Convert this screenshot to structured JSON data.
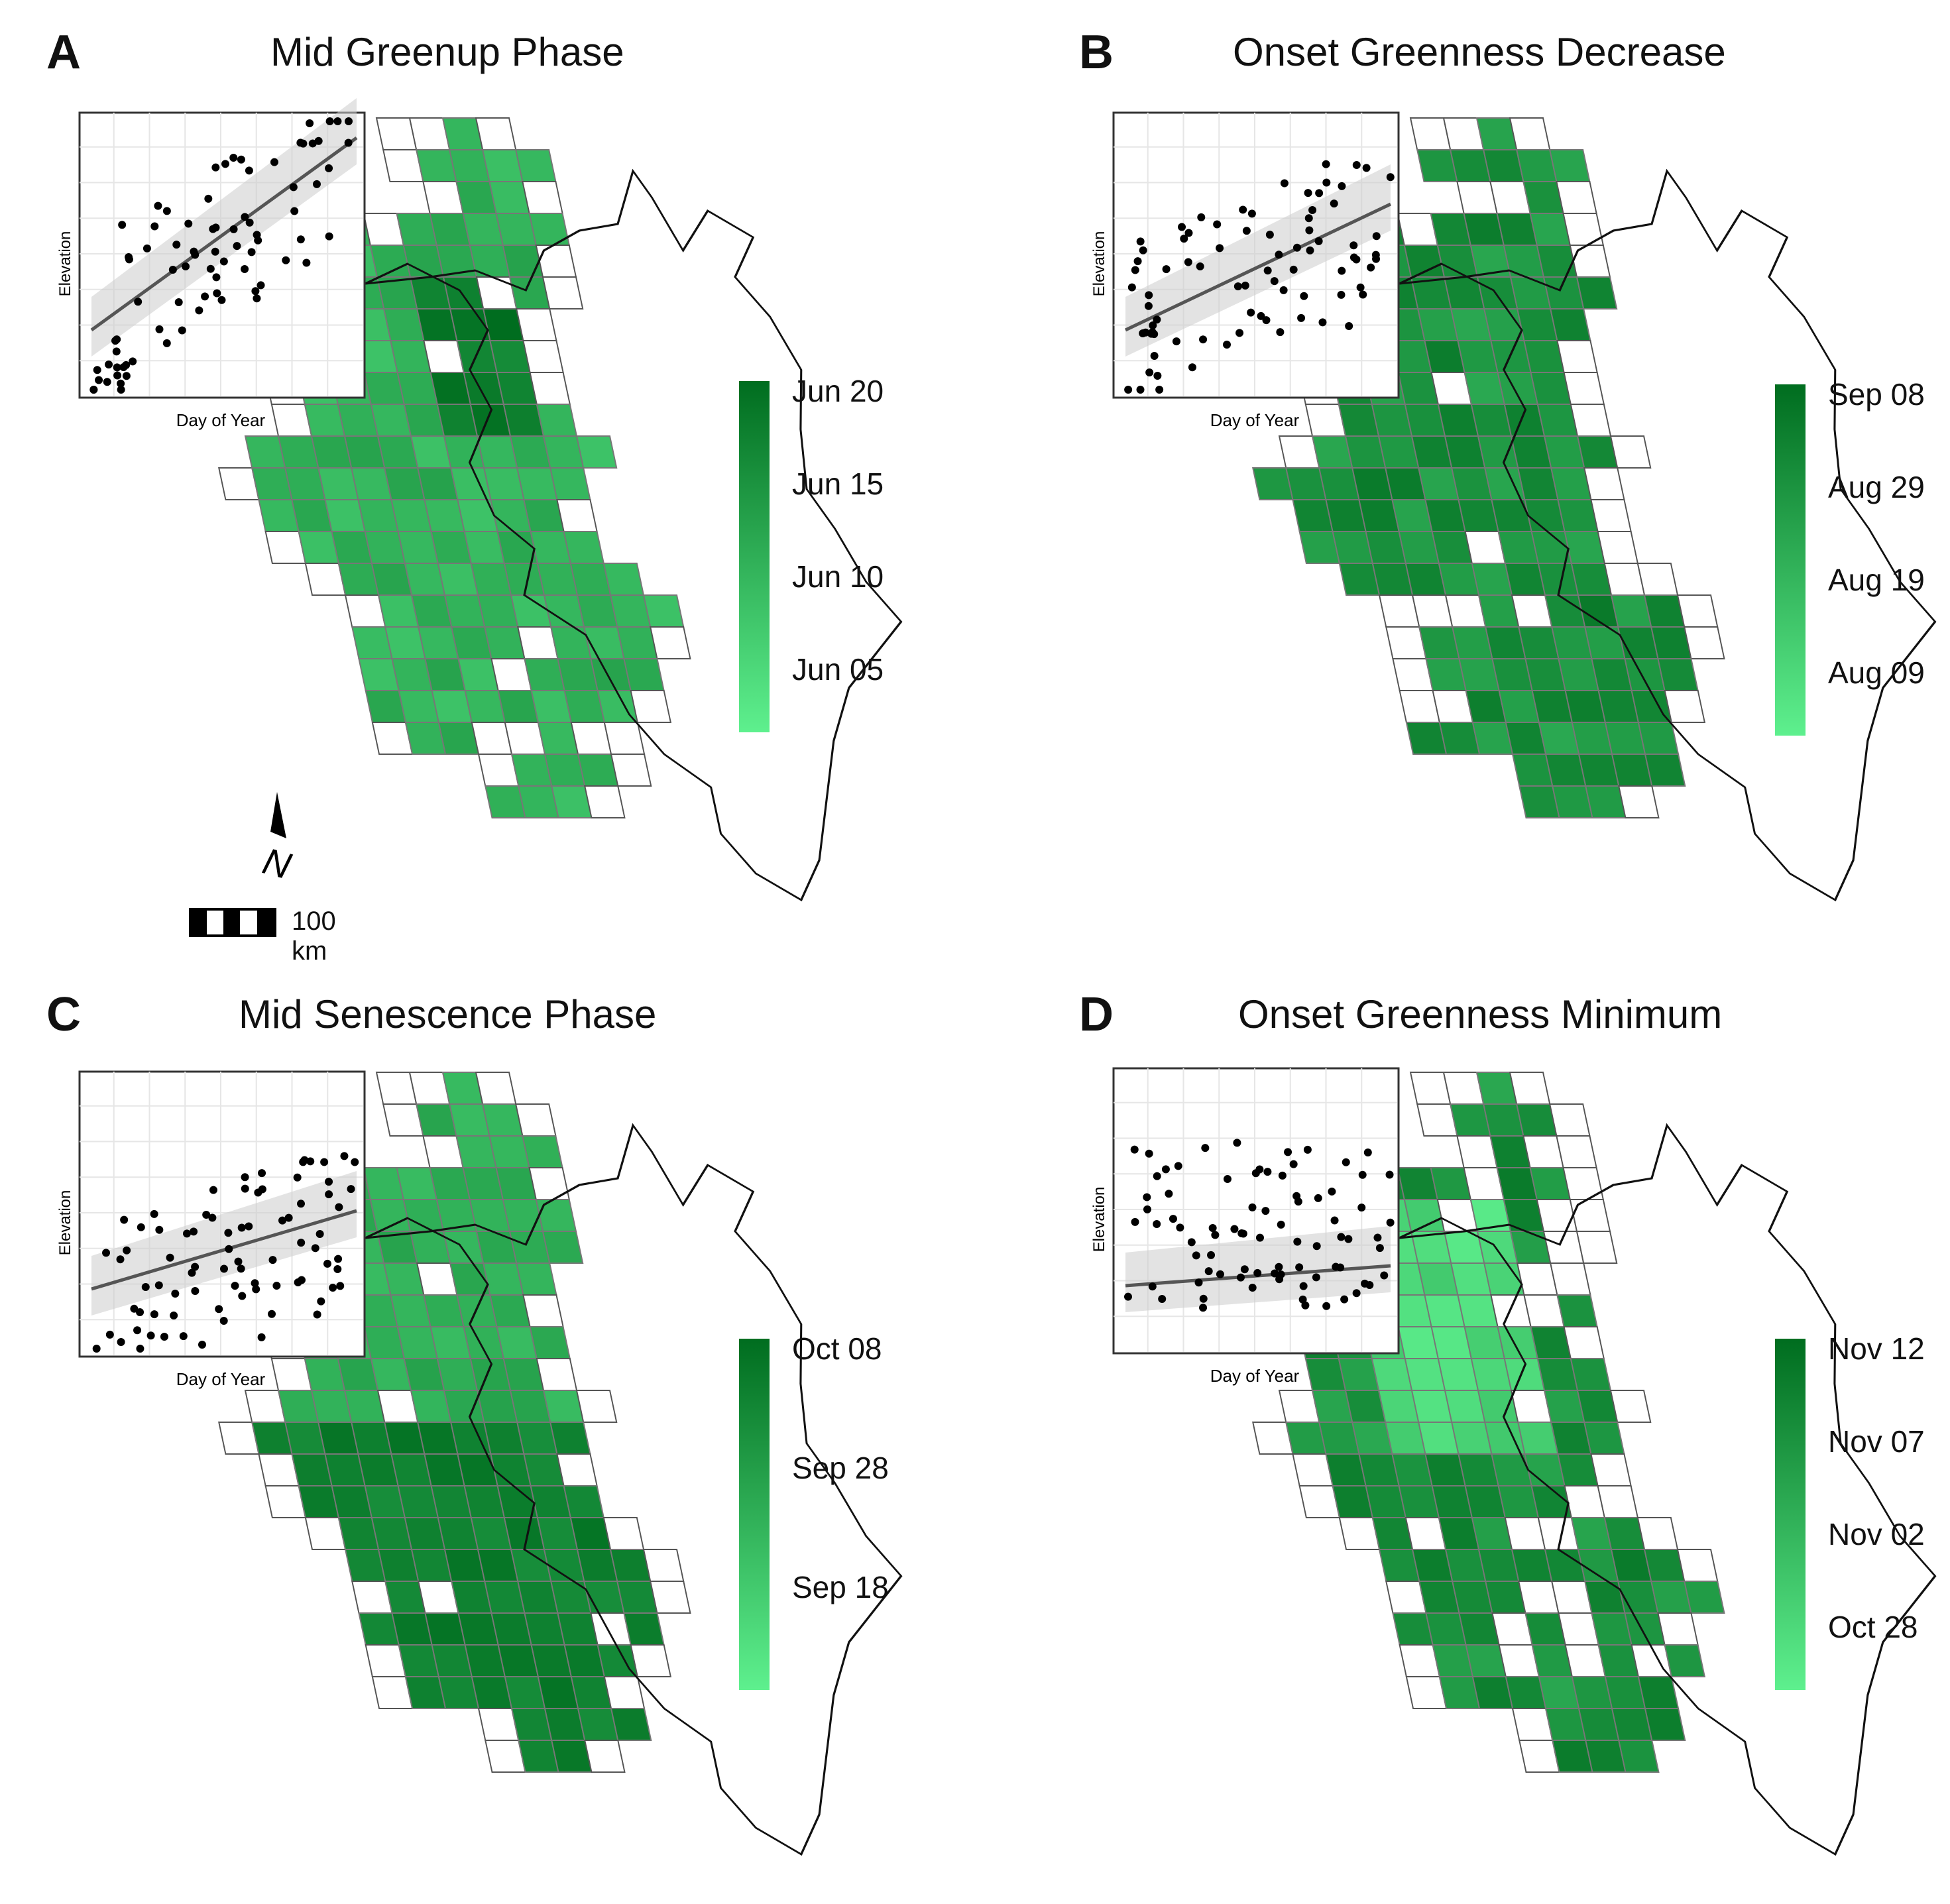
{
  "panels": [
    {
      "letter": "A",
      "title": "Mid Greenup Phase",
      "inset": {
        "xlabel": "Day of Year",
        "ylabel": "Elevation",
        "trend": "positive-strong"
      },
      "legend": {
        "labels": [
          "Jun 20",
          "Jun 15",
          "Jun 10",
          "Jun 05"
        ]
      },
      "scheme": "A"
    },
    {
      "letter": "B",
      "title": "Onset Greenness Decrease",
      "inset": {
        "xlabel": "Day of Year",
        "ylabel": "Elevation",
        "trend": "positive-moderate"
      },
      "legend": {
        "labels": [
          "Sep 08",
          "Aug 29",
          "Aug 19",
          "Aug 09"
        ]
      },
      "scheme": "B"
    },
    {
      "letter": "C",
      "title": "Mid Senescence Phase",
      "inset": {
        "xlabel": "Day of Year",
        "ylabel": "Elevation",
        "trend": "positive-weak"
      },
      "legend": {
        "labels": [
          "Oct 08",
          "Sep 28",
          "Sep 18"
        ]
      },
      "scheme": "C"
    },
    {
      "letter": "D",
      "title": "Onset Greenness Minimum",
      "inset": {
        "xlabel": "Day of Year",
        "ylabel": "Elevation",
        "trend": "flat"
      },
      "legend": {
        "labels": [
          "Nov 12",
          "Nov 07",
          "Nov 02",
          "Oct 28"
        ]
      },
      "scheme": "D"
    }
  ],
  "scale_bar": {
    "label": "100 km"
  },
  "north_arrow": {
    "label": "N"
  },
  "colors": {
    "light_green": "#5ef08e",
    "dark_green": "#006d1f",
    "grid_line": "#777777",
    "outline": "#111111"
  }
}
